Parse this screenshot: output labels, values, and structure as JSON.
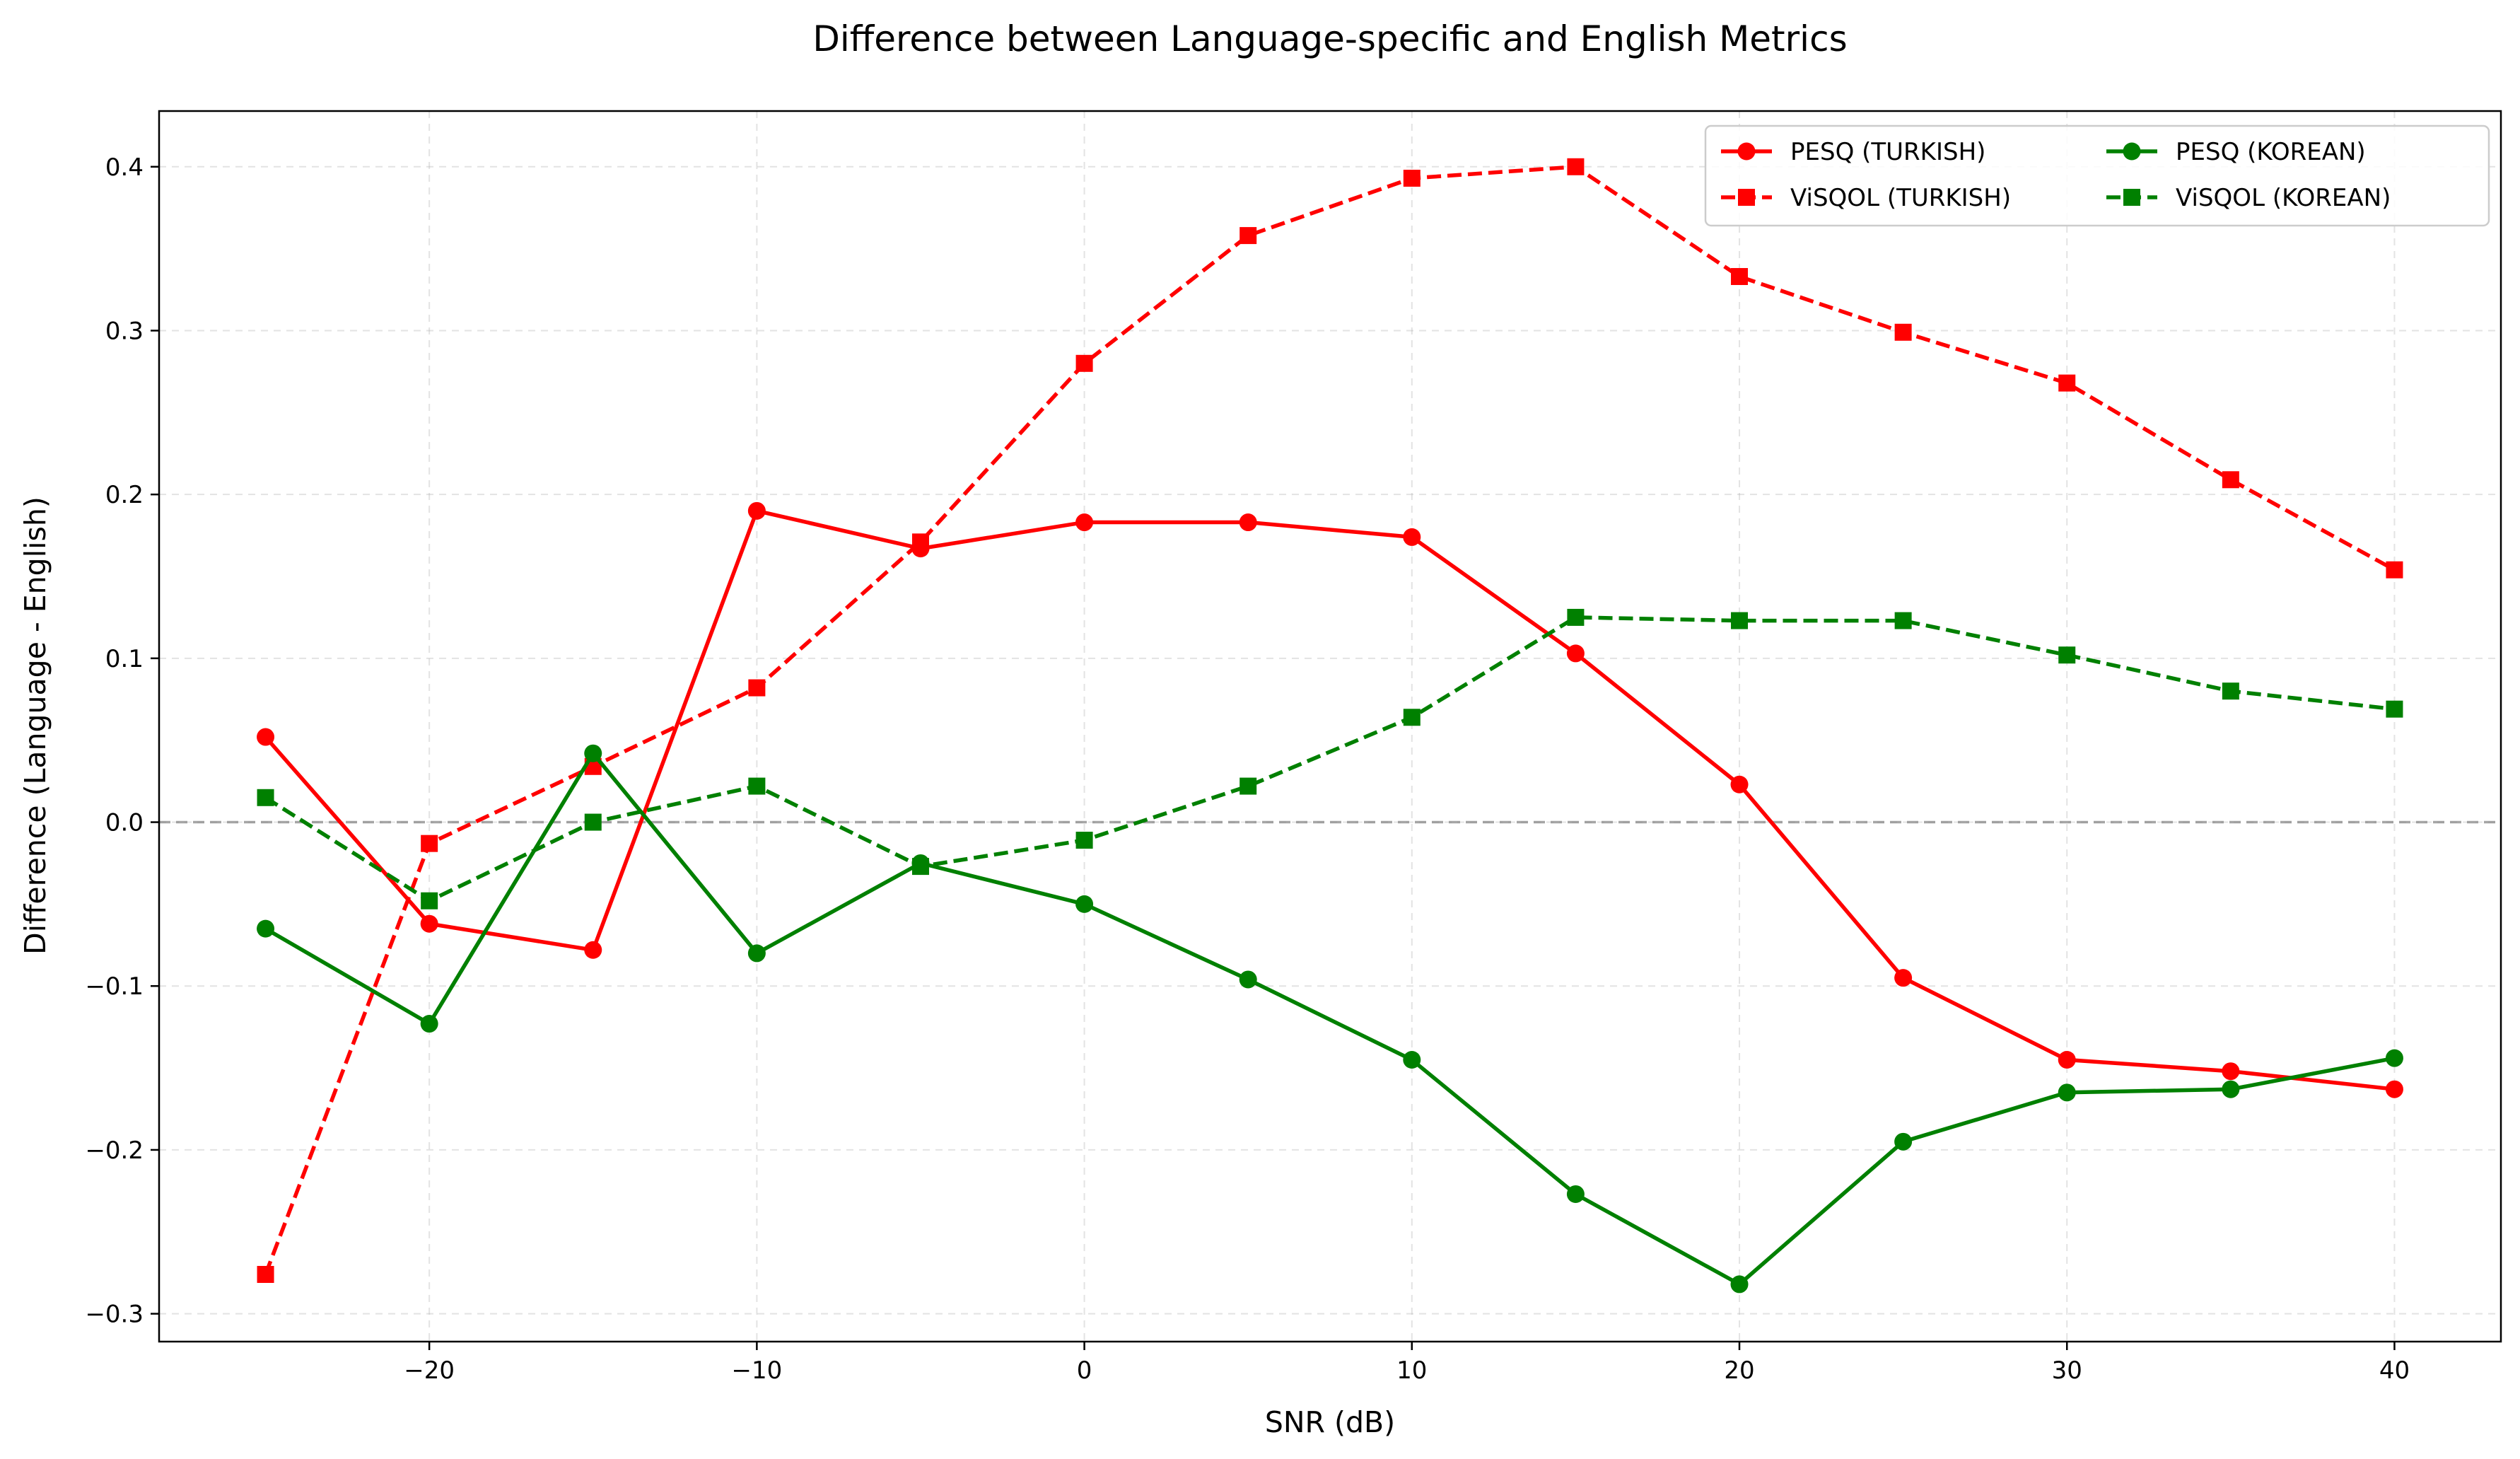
{
  "chart_data": {
    "type": "line",
    "title": "Difference between Language-specific and English Metrics",
    "xlabel": "SNR (dB)",
    "ylabel": "Difference (Language - English)",
    "x": [
      -25,
      -20,
      -15,
      -10,
      -5,
      0,
      5,
      10,
      15,
      20,
      25,
      30,
      35,
      40
    ],
    "xlim": [
      -28.25,
      43.25
    ],
    "ylim": [
      -0.317,
      0.434
    ],
    "xticks": [
      -20,
      -10,
      0,
      10,
      20,
      30,
      40
    ],
    "xtick_labels": [
      "−20",
      "−10",
      "0",
      "10",
      "20",
      "30",
      "40"
    ],
    "yticks": [
      -0.3,
      -0.2,
      -0.1,
      0.0,
      0.1,
      0.2,
      0.3,
      0.4
    ],
    "ytick_labels": [
      "−0.3",
      "−0.2",
      "−0.1",
      "0.0",
      "0.1",
      "0.2",
      "0.3",
      "0.4"
    ],
    "grid": true,
    "reference_line": 0.0,
    "legend_position": "top-right",
    "legend_columns": 2,
    "series": [
      {
        "name": "PESQ (TURKISH)",
        "color": "#ff0000",
        "linestyle": "solid",
        "marker": "circle",
        "values": [
          0.052,
          -0.062,
          -0.078,
          0.19,
          0.167,
          0.183,
          0.183,
          0.174,
          0.103,
          0.023,
          -0.095,
          -0.145,
          -0.152,
          -0.163
        ]
      },
      {
        "name": "ViSQOL (TURKISH)",
        "color": "#ff0000",
        "linestyle": "dashed",
        "marker": "square",
        "values": [
          -0.276,
          -0.013,
          0.034,
          0.082,
          0.171,
          0.28,
          0.358,
          0.393,
          0.4,
          0.333,
          0.299,
          0.268,
          0.209,
          0.154
        ]
      },
      {
        "name": "PESQ (KOREAN)",
        "color": "#008000",
        "linestyle": "solid",
        "marker": "circle",
        "values": [
          -0.065,
          -0.123,
          0.042,
          -0.08,
          -0.025,
          -0.05,
          -0.096,
          -0.145,
          -0.227,
          -0.282,
          -0.195,
          -0.165,
          -0.163,
          -0.144
        ]
      },
      {
        "name": "ViSQOL (KOREAN)",
        "color": "#008000",
        "linestyle": "dashed",
        "marker": "square",
        "values": [
          0.015,
          -0.048,
          0.0,
          0.022,
          -0.027,
          -0.011,
          0.022,
          0.064,
          0.125,
          0.123,
          0.123,
          0.102,
          0.08,
          0.069
        ]
      }
    ]
  }
}
